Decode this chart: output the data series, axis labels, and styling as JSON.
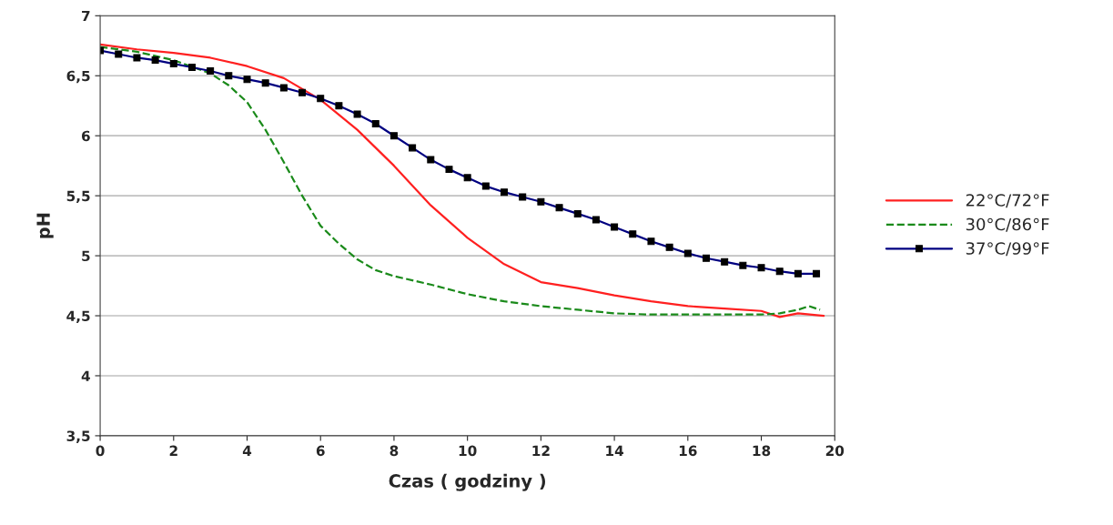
{
  "chart_data": {
    "type": "line",
    "xlabel": "Czas ( godziny )",
    "ylabel": "pH",
    "xlim": [
      0,
      20
    ],
    "xticks": [
      0,
      2,
      4,
      6,
      8,
      10,
      12,
      14,
      16,
      18,
      20
    ],
    "ylim": [
      3.5,
      7
    ],
    "yticks": [
      {
        "value": 3.5,
        "label": "3,5"
      },
      4,
      {
        "value": 4.5,
        "label": "4,5"
      },
      5,
      {
        "value": 5.5,
        "label": "5,5"
      },
      6,
      {
        "value": 6.5,
        "label": "6,5"
      },
      7
    ],
    "grid": "y",
    "legend": "right",
    "series": [
      {
        "name": "22°C/72°F",
        "color": "#ff2020",
        "line_style": "solid",
        "marker": "none",
        "x": [
          0,
          1,
          2,
          3,
          4,
          5,
          6,
          7,
          8,
          9,
          10,
          11,
          12,
          13,
          14,
          15,
          16,
          17,
          18,
          18.5,
          19,
          19.7
        ],
        "values": [
          6.76,
          6.72,
          6.69,
          6.65,
          6.58,
          6.48,
          6.3,
          6.05,
          5.75,
          5.42,
          5.15,
          4.93,
          4.78,
          4.73,
          4.67,
          4.62,
          4.58,
          4.56,
          4.54,
          4.49,
          4.52,
          4.5
        ]
      },
      {
        "name": "30°C/86°F",
        "color": "#1a8a1a",
        "line_style": "dashed",
        "marker": "none",
        "x": [
          0,
          1,
          2,
          3,
          3.5,
          4,
          4.5,
          5,
          5.5,
          6,
          6.5,
          7,
          7.5,
          8,
          9,
          10,
          11,
          12,
          13,
          14,
          15,
          16,
          17,
          18,
          18.5,
          19,
          19.3,
          19.6
        ],
        "values": [
          6.74,
          6.7,
          6.63,
          6.52,
          6.42,
          6.28,
          6.05,
          5.78,
          5.5,
          5.25,
          5.1,
          4.97,
          4.88,
          4.83,
          4.76,
          4.68,
          4.62,
          4.58,
          4.55,
          4.52,
          4.51,
          4.51,
          4.51,
          4.51,
          4.52,
          4.55,
          4.58,
          4.55
        ]
      },
      {
        "name": "37°C/99°F",
        "color": "#000080",
        "line_style": "solid",
        "marker": "square",
        "x": [
          0,
          0.5,
          1,
          1.5,
          2,
          2.5,
          3,
          3.5,
          4,
          4.5,
          5,
          5.5,
          6,
          6.5,
          7,
          7.5,
          8,
          8.5,
          9,
          9.5,
          10,
          10.5,
          11,
          11.5,
          12,
          12.5,
          13,
          13.5,
          14,
          14.5,
          15,
          15.5,
          16,
          16.5,
          17,
          17.5,
          18,
          18.5,
          19,
          19.5
        ],
        "values": [
          6.71,
          6.68,
          6.65,
          6.63,
          6.6,
          6.57,
          6.54,
          6.5,
          6.47,
          6.44,
          6.4,
          6.36,
          6.31,
          6.25,
          6.18,
          6.1,
          6.0,
          5.9,
          5.8,
          5.72,
          5.65,
          5.58,
          5.53,
          5.49,
          5.45,
          5.4,
          5.35,
          5.3,
          5.24,
          5.18,
          5.12,
          5.07,
          5.02,
          4.98,
          4.95,
          4.92,
          4.9,
          4.87,
          4.85,
          4.85
        ]
      }
    ]
  }
}
